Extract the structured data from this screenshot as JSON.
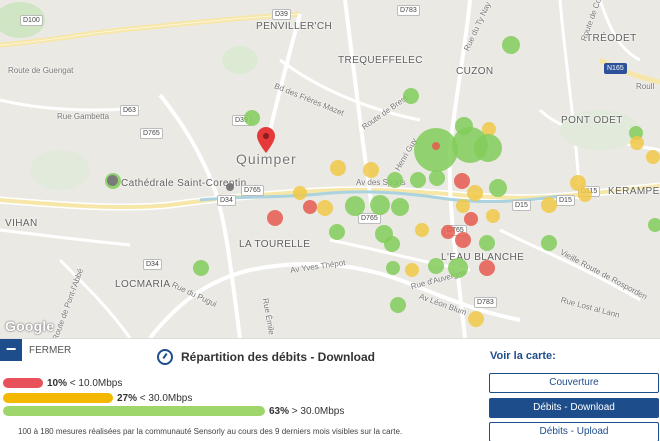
{
  "map": {
    "places": {
      "penvillerch": "PENVILLER'CH",
      "trequeffelec": "TREQUEFFELEC",
      "cuzon": "CUZON",
      "treodet": "TRÉODET",
      "pont_odet": "PONT ODET",
      "kerampen": "KERAMPEN",
      "quimper": "Quimper",
      "cathedrale": "Cathédrale Saint-Corentin",
      "vihan": "VIHAN",
      "la_tourelle": "LA TOURELLE",
      "locmaria": "LOCMARIA",
      "l_eau_blanche": "L'EAU BLANCHE"
    },
    "streets": {
      "route_guengat": "Route de Guengat",
      "rue_gambetta": "Rue Gambetta",
      "bd_freres_mazet": "Bd des Frères Mazet",
      "route_brest": "Route de Brest",
      "rue_ty_nay": "Rue du Ty Nay",
      "route_coray": "Route de Coray",
      "route_pont_abbe": "Route de Pont-l'Abbé",
      "rue_pugui": "Rue du Pugui",
      "av_yves_thepot": "Av Yves Thépot",
      "rue_emile": "Rue Émile",
      "av_leon_blum": "Av Léon Blum",
      "route_rosporden": "Vieille Route de Rosporden",
      "rue_lost_lann": "Rue Lost al Lann",
      "rue_auvergne": "Rue d'Auvergne",
      "av_sports": "Av des Sports",
      "henri_guy": "Henri Guy",
      "roull": "Roull"
    },
    "shields": {
      "d100": "D100",
      "d39": "D39",
      "d783": "D783",
      "d63": "D63",
      "d765": "D765",
      "d39b": "D39",
      "d34": "D34",
      "d765b": "D765",
      "n165": "N165",
      "d15": "D15",
      "d15b": "D15",
      "d115": "D115",
      "d765c": "D765",
      "d783b": "D783",
      "d34b": "D34",
      "d765d": "D765"
    },
    "google_logo": "Google"
  },
  "panel": {
    "close_label": "FERMER",
    "legend_title": "Répartition des débits - Download",
    "bars": [
      {
        "percent": "10%",
        "text": "< 10.0Mbps",
        "color": "#e8515a",
        "fraction": 0.1
      },
      {
        "percent": "27%",
        "text": "< 30.0Mbps",
        "color": "#f5b800",
        "fraction": 0.27
      },
      {
        "percent": "63%",
        "text": "> 30.0Mbps",
        "color": "#9fd66b",
        "fraction": 0.63
      }
    ],
    "note": "100 à 180 mesures réalisées par la communauté Sensorly au cours des 9 derniers mois visibles sur la carte.",
    "voir_title": "Voir la carte:",
    "buttons": {
      "couverture": "Couverture",
      "download": "Débits - Download",
      "upload": "Débits - Upload"
    },
    "accent_color": "#1e4d8c"
  }
}
